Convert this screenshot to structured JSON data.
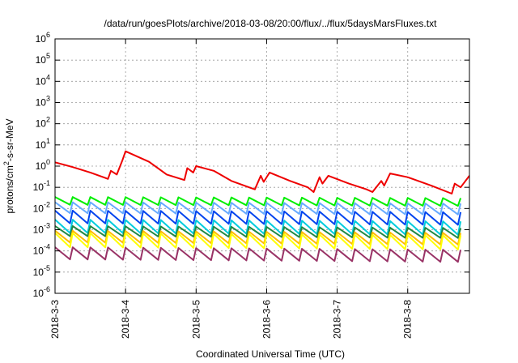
{
  "chart_data": {
    "type": "line",
    "title": "/data/run/goesPlots/archive/2018-03-08/20:00/flux/../flux/5daysMarsFluxes.txt",
    "xlabel": "Coordinated Universal Time (UTC)",
    "ylabel": "protons/cm²-s-sr-MeV",
    "ylabel_parts": {
      "pre": "protons/cm",
      "sup": "2",
      "post": "-s-sr-MeV"
    },
    "yscale": "log",
    "ylim": [
      1e-06,
      1000000.0
    ],
    "xlim": [
      "2018-03-03T00:00",
      "2018-03-08T21:00"
    ],
    "x_ticks": [
      "2018-3-3",
      "2018-3-4",
      "2018-3-5",
      "2018-3-6",
      "2018-3-7",
      "2018-3-8"
    ],
    "y_ticks": [
      {
        "base": "10",
        "exp": "-6"
      },
      {
        "base": "10",
        "exp": "-5"
      },
      {
        "base": "10",
        "exp": "-4"
      },
      {
        "base": "10",
        "exp": "-3"
      },
      {
        "base": "10",
        "exp": "-2"
      },
      {
        "base": "10",
        "exp": "-1"
      },
      {
        "base": "10",
        "exp": "0"
      },
      {
        "base": "10",
        "exp": "1"
      },
      {
        "base": "10",
        "exp": "2"
      },
      {
        "base": "10",
        "exp": "3"
      },
      {
        "base": "10",
        "exp": "4"
      },
      {
        "base": "10",
        "exp": "5"
      },
      {
        "base": "10",
        "exp": "6"
      }
    ],
    "grid": true,
    "legend": "none",
    "series": [
      {
        "color": "#ee0000",
        "style": "smooth",
        "points": [
          [
            "2018-03-03T00:00",
            1.5
          ],
          [
            "2018-03-03T06:00",
            0.9
          ],
          [
            "2018-03-03T12:00",
            0.5
          ],
          [
            "2018-03-03T18:00",
            0.25
          ],
          [
            "2018-03-03T19:00",
            0.6
          ],
          [
            "2018-03-03T21:00",
            0.4
          ],
          [
            "2018-03-03T23:00",
            2.0
          ],
          [
            "2018-03-04T00:00",
            5.0
          ],
          [
            "2018-03-04T08:00",
            1.6
          ],
          [
            "2018-03-04T14:00",
            0.4
          ],
          [
            "2018-03-04T20:00",
            0.22
          ],
          [
            "2018-03-04T21:00",
            0.8
          ],
          [
            "2018-03-04T23:00",
            0.5
          ],
          [
            "2018-03-05T00:00",
            1.0
          ],
          [
            "2018-03-05T06:00",
            0.6
          ],
          [
            "2018-03-05T12:00",
            0.2
          ],
          [
            "2018-03-05T18:00",
            0.1
          ],
          [
            "2018-03-05T20:00",
            0.08
          ],
          [
            "2018-03-05T22:00",
            0.35
          ],
          [
            "2018-03-05T23:00",
            0.18
          ],
          [
            "2018-03-06T01:00",
            0.5
          ],
          [
            "2018-03-06T08:00",
            0.2
          ],
          [
            "2018-03-06T14:00",
            0.1
          ],
          [
            "2018-03-06T16:00",
            0.06
          ],
          [
            "2018-03-06T18:00",
            0.3
          ],
          [
            "2018-03-06T19:00",
            0.15
          ],
          [
            "2018-03-06T21:00",
            0.35
          ],
          [
            "2018-03-07T04:00",
            0.15
          ],
          [
            "2018-03-07T10:00",
            0.08
          ],
          [
            "2018-03-07T12:00",
            0.06
          ],
          [
            "2018-03-07T15:00",
            0.2
          ],
          [
            "2018-03-07T16:00",
            0.12
          ],
          [
            "2018-03-07T18:00",
            0.45
          ],
          [
            "2018-03-08T00:00",
            0.3
          ],
          [
            "2018-03-08T08:00",
            0.12
          ],
          [
            "2018-03-08T15:00",
            0.05
          ],
          [
            "2018-03-08T16:00",
            0.15
          ],
          [
            "2018-03-08T18:00",
            0.1
          ],
          [
            "2018-03-08T21:00",
            0.35
          ]
        ]
      },
      {
        "color": "#00ee00",
        "style": "sawtooth",
        "low": 0.015,
        "high": 0.035
      },
      {
        "color": "#66aaff",
        "style": "sawtooth",
        "low": 0.006,
        "high": 0.02
      },
      {
        "color": "#0044ee",
        "style": "sawtooth",
        "low": 0.002,
        "high": 0.008
      },
      {
        "color": "#00ccdd",
        "style": "sawtooth",
        "low": 0.0007,
        "high": 0.003
      },
      {
        "color": "#228844",
        "style": "sawtooth",
        "low": 0.0005,
        "high": 0.0015
      },
      {
        "color": "#ffbb00",
        "style": "sawtooth",
        "low": 0.00025,
        "high": 0.0009
      },
      {
        "color": "#ffff00",
        "style": "sawtooth",
        "low": 0.00015,
        "high": 0.0007
      },
      {
        "color": "#993366",
        "style": "sawtooth",
        "low": 4e-05,
        "high": 0.00015
      }
    ]
  }
}
